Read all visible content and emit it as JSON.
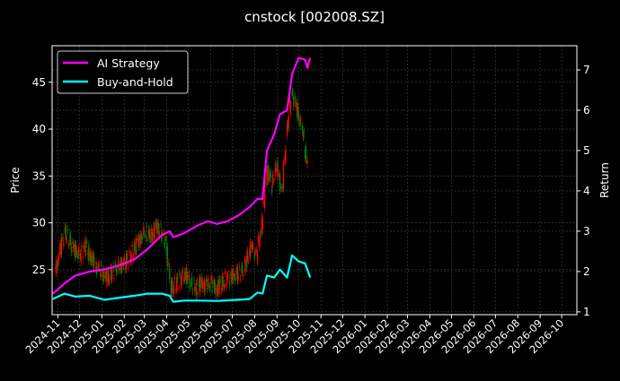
{
  "chart_data": {
    "type": "line",
    "title": "cnstock [002008.SZ]",
    "ylabel": "Price",
    "ylabel_right": "Return",
    "xlim": [
      "2024-10-24",
      "2026-10-22"
    ],
    "ylim": [
      20.2,
      48.9
    ],
    "ylim_right": [
      0.93,
      7.6
    ],
    "yticks": [
      25,
      30,
      35,
      40,
      45
    ],
    "yticks_right": [
      1,
      2,
      3,
      4,
      5,
      6,
      7
    ],
    "xticks": [
      "2024-11",
      "2024-12",
      "2025-01",
      "2025-02",
      "2025-03",
      "2025-04",
      "2025-05",
      "2025-06",
      "2025-07",
      "2025-08",
      "2025-09",
      "2025-10",
      "2025-11",
      "2025-12",
      "2026-01",
      "2026-02",
      "2026-03",
      "2026-04",
      "2026-05",
      "2026-06",
      "2026-07",
      "2026-08",
      "2026-09",
      "2026-10"
    ],
    "grid": true,
    "legend_placement": "top-left",
    "colors": {
      "background": "#000000",
      "up": "#ff0000",
      "down": "#008000",
      "ai_strategy": "#ff00ff",
      "buy_and_hold": "#00ffff",
      "grid": "#444444"
    },
    "candles": {
      "dates": [
        "2024-10-28",
        "2024-11-04",
        "2024-11-11",
        "2024-11-18",
        "2024-11-25",
        "2024-12-02",
        "2024-12-09",
        "2024-12-16",
        "2024-12-23",
        "2024-12-30",
        "2025-01-06",
        "2025-01-13",
        "2025-01-20",
        "2025-01-27",
        "2025-02-03",
        "2025-02-10",
        "2025-02-17",
        "2025-02-24",
        "2025-03-03",
        "2025-03-10",
        "2025-03-17",
        "2025-03-24",
        "2025-03-31",
        "2025-04-07",
        "2025-04-14",
        "2025-04-21",
        "2025-04-28",
        "2025-05-05",
        "2025-05-12",
        "2025-05-19",
        "2025-05-26",
        "2025-06-02",
        "2025-06-09",
        "2025-06-16",
        "2025-06-23",
        "2025-06-30",
        "2025-07-07",
        "2025-07-14",
        "2025-07-21",
        "2025-07-28",
        "2025-08-04",
        "2025-08-11",
        "2025-08-18",
        "2025-08-25",
        "2025-09-01",
        "2025-09-08",
        "2025-09-15",
        "2025-09-22",
        "2025-09-29",
        "2025-10-06",
        "2025-10-13"
      ],
      "close": [
        24.5,
        27,
        29,
        28,
        27,
        26.5,
        27.5,
        26.5,
        25.5,
        25,
        24,
        24.5,
        25,
        25.5,
        25.8,
        26.5,
        27.5,
        28.5,
        29,
        28.5,
        29.5,
        29,
        28,
        23,
        23.5,
        24,
        24.5,
        23.5,
        23,
        23.5,
        23.2,
        23.5,
        23,
        23.5,
        24,
        24.2,
        24.5,
        24.8,
        26,
        27.5,
        26.5,
        30,
        36,
        34,
        36,
        33,
        40,
        44,
        42,
        40,
        36
      ]
    },
    "series": [
      {
        "name": "AI Strategy",
        "axis": "right",
        "dates": [
          "2024-10-25",
          "2024-11-10",
          "2024-11-25",
          "2024-12-15",
          "2025-01-05",
          "2025-01-25",
          "2025-02-15",
          "2025-03-05",
          "2025-03-25",
          "2025-04-05",
          "2025-04-10",
          "2025-04-25",
          "2025-05-15",
          "2025-05-28",
          "2025-06-10",
          "2025-06-25",
          "2025-07-10",
          "2025-07-25",
          "2025-08-05",
          "2025-08-12",
          "2025-08-18",
          "2025-08-28",
          "2025-09-05",
          "2025-09-15",
          "2025-09-22",
          "2025-10-01",
          "2025-10-10",
          "2025-10-13",
          "2025-10-17"
        ],
        "values": [
          1.45,
          1.7,
          1.9,
          2.0,
          2.05,
          2.15,
          2.3,
          2.55,
          2.9,
          3.0,
          2.85,
          2.95,
          3.15,
          3.25,
          3.18,
          3.25,
          3.4,
          3.6,
          3.8,
          3.8,
          5.0,
          5.4,
          5.9,
          6.0,
          6.9,
          7.3,
          7.25,
          7.05,
          7.3
        ]
      },
      {
        "name": "Buy-and-Hold",
        "axis": "right",
        "dates": [
          "2024-10-25",
          "2024-11-10",
          "2024-11-25",
          "2024-12-15",
          "2025-01-05",
          "2025-01-25",
          "2025-02-15",
          "2025-03-05",
          "2025-03-25",
          "2025-04-05",
          "2025-04-10",
          "2025-04-25",
          "2025-05-15",
          "2025-06-10",
          "2025-07-10",
          "2025-07-25",
          "2025-08-05",
          "2025-08-12",
          "2025-08-18",
          "2025-08-28",
          "2025-09-05",
          "2025-09-15",
          "2025-09-22",
          "2025-10-01",
          "2025-10-10",
          "2025-10-17"
        ],
        "values": [
          1.32,
          1.45,
          1.38,
          1.4,
          1.3,
          1.35,
          1.4,
          1.45,
          1.45,
          1.4,
          1.25,
          1.28,
          1.28,
          1.27,
          1.3,
          1.32,
          1.48,
          1.45,
          1.9,
          1.85,
          2.05,
          1.85,
          2.4,
          2.25,
          2.2,
          1.85
        ]
      }
    ]
  }
}
